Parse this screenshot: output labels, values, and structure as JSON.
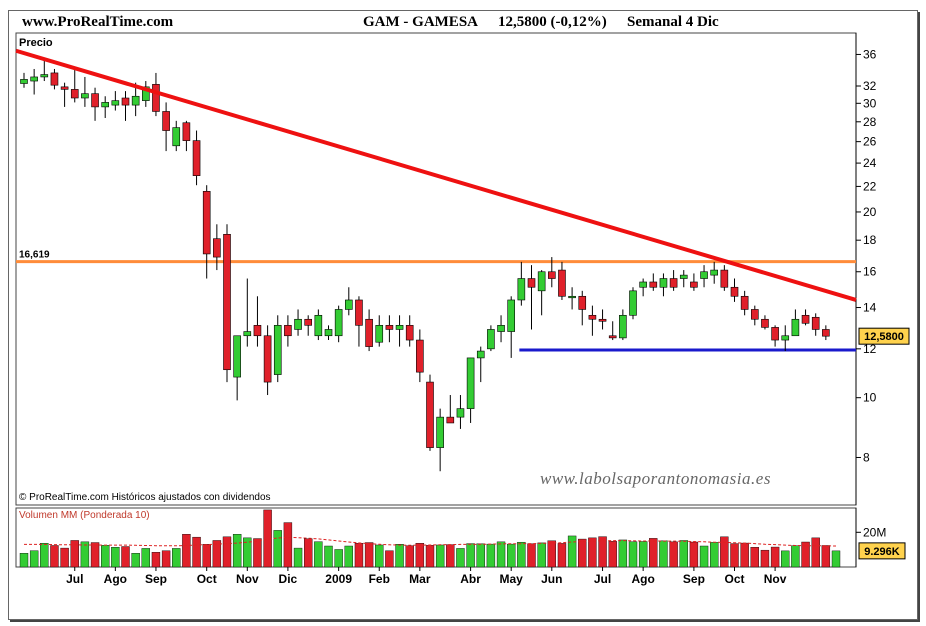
{
  "header": {
    "site": "www.ProRealTime.com",
    "ticker": "GAM - GAMESA",
    "price": "12,5800 (-0,12%)",
    "period": "Semanal  4 Dic"
  },
  "price_panel": {
    "label": "Precio",
    "resistance_label": "16,619",
    "last_price_label": "12,5800",
    "watermark": "www.labolsaporantonomasia.es",
    "footer": "© ProRealTime.com  Históricos ajustados con dividendos"
  },
  "volume_panel": {
    "label": "Volumen MM (Ponderada 10)",
    "axis_label": "20M",
    "last_volume_label": "9.296K"
  },
  "colors": {
    "up": "#33cc33",
    "down": "#e0202a",
    "trendline": "#ee1111",
    "resistance": "#ff8c3a",
    "support": "#1a1acc",
    "frame": "#222222"
  },
  "chart_data": [
    {
      "type": "candlestick",
      "title": "GAM - GAMESA",
      "ylabel": "Precio",
      "y_scale": "log",
      "ylim": [
        6.7,
        39
      ],
      "y_ticks": [
        8,
        10,
        12,
        14,
        16,
        18,
        20,
        22,
        24,
        26,
        28,
        30,
        32,
        36
      ],
      "x_tick_labels": [
        "Jul",
        "Ago",
        "Sep",
        "Oct",
        "Nov",
        "Dic",
        "2009",
        "Feb",
        "Mar",
        "Abr",
        "May",
        "Jun",
        "Jul",
        "Ago",
        "Sep",
        "Oct",
        "Nov"
      ],
      "candles": [
        {
          "o": 32.3,
          "h": 33.6,
          "l": 31.8,
          "c": 32.8
        },
        {
          "o": 32.6,
          "h": 34.1,
          "l": 31.0,
          "c": 33.1
        },
        {
          "o": 33.1,
          "h": 35.5,
          "l": 32.6,
          "c": 33.4
        },
        {
          "o": 33.6,
          "h": 34.1,
          "l": 31.6,
          "c": 32.1
        },
        {
          "o": 31.9,
          "h": 32.4,
          "l": 29.6,
          "c": 31.6
        },
        {
          "o": 31.6,
          "h": 34.1,
          "l": 30.1,
          "c": 30.6
        },
        {
          "o": 30.6,
          "h": 33.1,
          "l": 29.6,
          "c": 31.1
        },
        {
          "o": 31.1,
          "h": 31.8,
          "l": 28.1,
          "c": 29.6
        },
        {
          "o": 29.6,
          "h": 30.8,
          "l": 28.4,
          "c": 30.1
        },
        {
          "o": 29.8,
          "h": 31.4,
          "l": 29.2,
          "c": 30.3
        },
        {
          "o": 30.6,
          "h": 31.4,
          "l": 28.1,
          "c": 29.8
        },
        {
          "o": 29.8,
          "h": 32.4,
          "l": 28.6,
          "c": 30.8
        },
        {
          "o": 30.3,
          "h": 32.6,
          "l": 29.6,
          "c": 31.9
        },
        {
          "o": 32.2,
          "h": 33.6,
          "l": 28.6,
          "c": 29.1
        },
        {
          "o": 29.1,
          "h": 30.1,
          "l": 25.1,
          "c": 27.1
        },
        {
          "o": 25.6,
          "h": 28.1,
          "l": 25.1,
          "c": 27.4
        },
        {
          "o": 27.9,
          "h": 28.1,
          "l": 25.1,
          "c": 26.1
        },
        {
          "o": 26.1,
          "h": 27.1,
          "l": 22.1,
          "c": 22.9
        },
        {
          "o": 21.6,
          "h": 22.1,
          "l": 15.6,
          "c": 17.1
        },
        {
          "o": 18.1,
          "h": 19.1,
          "l": 16.1,
          "c": 16.9
        },
        {
          "o": 18.4,
          "h": 19.1,
          "l": 10.6,
          "c": 11.1
        },
        {
          "o": 10.8,
          "h": 12.6,
          "l": 9.9,
          "c": 12.6
        },
        {
          "o": 12.6,
          "h": 15.6,
          "l": 12.1,
          "c": 12.8
        },
        {
          "o": 13.1,
          "h": 14.6,
          "l": 12.1,
          "c": 12.6
        },
        {
          "o": 12.6,
          "h": 13.1,
          "l": 10.1,
          "c": 10.6
        },
        {
          "o": 10.9,
          "h": 13.6,
          "l": 10.6,
          "c": 13.1
        },
        {
          "o": 13.1,
          "h": 13.6,
          "l": 12.1,
          "c": 12.6
        },
        {
          "o": 12.9,
          "h": 13.9,
          "l": 12.6,
          "c": 13.4
        },
        {
          "o": 13.4,
          "h": 13.6,
          "l": 12.6,
          "c": 13.1
        },
        {
          "o": 12.6,
          "h": 13.9,
          "l": 12.4,
          "c": 13.6
        },
        {
          "o": 12.6,
          "h": 13.1,
          "l": 12.4,
          "c": 12.9
        },
        {
          "o": 12.6,
          "h": 14.1,
          "l": 12.3,
          "c": 13.9
        },
        {
          "o": 13.9,
          "h": 15.1,
          "l": 13.6,
          "c": 14.4
        },
        {
          "o": 14.4,
          "h": 14.6,
          "l": 12.1,
          "c": 13.1
        },
        {
          "o": 13.4,
          "h": 13.9,
          "l": 11.9,
          "c": 12.1
        },
        {
          "o": 12.3,
          "h": 13.6,
          "l": 12.1,
          "c": 13.1
        },
        {
          "o": 13.1,
          "h": 13.6,
          "l": 12.3,
          "c": 12.9
        },
        {
          "o": 12.9,
          "h": 13.6,
          "l": 12.1,
          "c": 13.1
        },
        {
          "o": 13.1,
          "h": 13.6,
          "l": 12.1,
          "c": 12.4
        },
        {
          "o": 12.4,
          "h": 12.9,
          "l": 10.6,
          "c": 11.0
        },
        {
          "o": 10.6,
          "h": 10.9,
          "l": 8.2,
          "c": 8.3
        },
        {
          "o": 8.3,
          "h": 9.6,
          "l": 7.6,
          "c": 9.3
        },
        {
          "o": 9.3,
          "h": 10.1,
          "l": 9.1,
          "c": 9.1
        },
        {
          "o": 9.3,
          "h": 10.1,
          "l": 8.9,
          "c": 9.6
        },
        {
          "o": 9.6,
          "h": 11.6,
          "l": 9.1,
          "c": 11.6
        },
        {
          "o": 11.6,
          "h": 12.1,
          "l": 10.6,
          "c": 11.9
        },
        {
          "o": 12.0,
          "h": 13.1,
          "l": 11.9,
          "c": 12.9
        },
        {
          "o": 12.8,
          "h": 13.6,
          "l": 12.3,
          "c": 13.1
        },
        {
          "o": 12.8,
          "h": 14.6,
          "l": 11.6,
          "c": 14.4
        },
        {
          "o": 14.4,
          "h": 16.6,
          "l": 14.1,
          "c": 15.6
        },
        {
          "o": 15.6,
          "h": 16.4,
          "l": 12.9,
          "c": 15.1
        },
        {
          "o": 14.9,
          "h": 16.1,
          "l": 13.6,
          "c": 16.0
        },
        {
          "o": 16.0,
          "h": 16.9,
          "l": 15.1,
          "c": 15.6
        },
        {
          "o": 16.1,
          "h": 16.6,
          "l": 14.4,
          "c": 14.6
        },
        {
          "o": 14.6,
          "h": 15.1,
          "l": 13.9,
          "c": 14.6
        },
        {
          "o": 14.6,
          "h": 14.9,
          "l": 13.1,
          "c": 13.9
        },
        {
          "o": 13.6,
          "h": 14.1,
          "l": 12.6,
          "c": 13.4
        },
        {
          "o": 13.4,
          "h": 13.9,
          "l": 12.9,
          "c": 13.3
        },
        {
          "o": 12.6,
          "h": 13.3,
          "l": 12.4,
          "c": 12.5
        },
        {
          "o": 12.5,
          "h": 13.9,
          "l": 12.4,
          "c": 13.6
        },
        {
          "o": 13.6,
          "h": 15.1,
          "l": 13.4,
          "c": 14.9
        },
        {
          "o": 15.1,
          "h": 15.6,
          "l": 14.6,
          "c": 15.4
        },
        {
          "o": 15.4,
          "h": 15.9,
          "l": 14.9,
          "c": 15.1
        },
        {
          "o": 15.1,
          "h": 15.9,
          "l": 14.6,
          "c": 15.6
        },
        {
          "o": 15.6,
          "h": 16.1,
          "l": 14.9,
          "c": 15.1
        },
        {
          "o": 15.6,
          "h": 16.1,
          "l": 15.1,
          "c": 15.8
        },
        {
          "o": 15.4,
          "h": 15.9,
          "l": 14.9,
          "c": 15.1
        },
        {
          "o": 15.6,
          "h": 16.4,
          "l": 15.1,
          "c": 16.0
        },
        {
          "o": 15.8,
          "h": 16.6,
          "l": 15.3,
          "c": 16.1
        },
        {
          "o": 16.1,
          "h": 16.4,
          "l": 14.9,
          "c": 15.1
        },
        {
          "o": 15.1,
          "h": 15.6,
          "l": 14.3,
          "c": 14.6
        },
        {
          "o": 14.6,
          "h": 14.9,
          "l": 13.6,
          "c": 13.9
        },
        {
          "o": 13.9,
          "h": 14.1,
          "l": 13.1,
          "c": 13.4
        },
        {
          "o": 13.4,
          "h": 13.6,
          "l": 12.9,
          "c": 13.0
        },
        {
          "o": 13.0,
          "h": 13.1,
          "l": 12.1,
          "c": 12.4
        },
        {
          "o": 12.4,
          "h": 13.1,
          "l": 11.9,
          "c": 12.6
        },
        {
          "o": 12.6,
          "h": 13.9,
          "l": 12.6,
          "c": 13.4
        },
        {
          "o": 13.6,
          "h": 13.9,
          "l": 13.1,
          "c": 13.2
        },
        {
          "o": 13.5,
          "h": 13.7,
          "l": 12.6,
          "c": 12.9
        },
        {
          "o": 12.9,
          "h": 13.1,
          "l": 12.4,
          "c": 12.58
        }
      ],
      "trendline": {
        "from": [
          0,
          36.5
        ],
        "to": [
          80,
          14.4
        ]
      },
      "resistance": 16.619,
      "support": {
        "value": 11.95,
        "from_index": 49
      }
    },
    {
      "type": "bar",
      "title": "Volumen MM (Ponderada 10)",
      "units": "M",
      "y_tick": 20,
      "last_value": 9.296,
      "values": [
        7.9,
        9.4,
        13.7,
        12.4,
        10.9,
        15.3,
        14.5,
        14.1,
        12.5,
        11.4,
        11.8,
        7.9,
        10.7,
        8.5,
        9.4,
        10.7,
        18.9,
        17.2,
        13.1,
        15.3,
        17.4,
        18.9,
        16.8,
        16.4,
        32.9,
        21.1,
        25.6,
        10.9,
        16.3,
        14.6,
        12.1,
        10.1,
        12.1,
        13.7,
        14.1,
        12.7,
        9.4,
        13.1,
        12.3,
        13.7,
        12.5,
        12.7,
        12.9,
        10.7,
        13.5,
        13.4,
        13.2,
        14.5,
        13.2,
        14.3,
        13.4,
        13.9,
        15.1,
        13.6,
        17.9,
        16.1,
        16.8,
        17.5,
        14.8,
        15.6,
        14.6,
        14.7,
        16.5,
        15.1,
        14.5,
        15.3,
        14.4,
        12.1,
        14.2,
        17.4,
        13.5,
        13.8,
        11.4,
        9.7,
        11.5,
        9.3,
        12.3,
        14.4,
        16.8,
        12.4,
        9.3
      ],
      "volume_avg": [
        13.0,
        13.0,
        13.0,
        12.9,
        12.8,
        12.8,
        12.7,
        12.7,
        12.6,
        12.6,
        12.6,
        12.5,
        12.4,
        12.3,
        12.2,
        12.2,
        12.4,
        12.7,
        12.9,
        13.2,
        13.5,
        13.8,
        14.3,
        14.9,
        16.0,
        16.7,
        17.1,
        16.9,
        16.6,
        16.2,
        15.6,
        15.0,
        14.4,
        13.9,
        13.5,
        13.1,
        12.8,
        12.6,
        12.5,
        12.6,
        12.7,
        12.8,
        12.9,
        13.0,
        13.0,
        13.1,
        13.2,
        13.3,
        13.4,
        13.4,
        13.5,
        13.6,
        13.8,
        14.0,
        14.4,
        14.7,
        14.9,
        15.1,
        15.2,
        15.2,
        15.1,
        15.0,
        15.0,
        14.9,
        14.9,
        14.8,
        14.7,
        14.5,
        14.3,
        14.2,
        14.0,
        13.8,
        13.5,
        13.1,
        12.9,
        12.6,
        12.4,
        12.3,
        12.3,
        12.2,
        12.1
      ]
    }
  ]
}
